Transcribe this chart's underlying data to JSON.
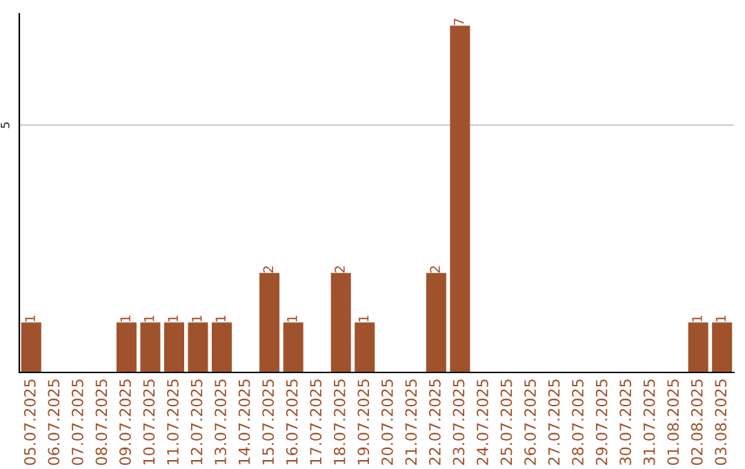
{
  "chart_data": {
    "type": "bar",
    "categories": [
      "05.07.2025",
      "06.07.2025",
      "07.07.2025",
      "08.07.2025",
      "09.07.2025",
      "10.07.2025",
      "11.07.2025",
      "12.07.2025",
      "13.07.2025",
      "14.07.2025",
      "15.07.2025",
      "16.07.2025",
      "17.07.2025",
      "18.07.2025",
      "19.07.2025",
      "20.07.2025",
      "21.07.2025",
      "22.07.2025",
      "23.07.2025",
      "24.07.2025",
      "25.07.2025",
      "26.07.2025",
      "27.07.2025",
      "28.07.2025",
      "29.07.2025",
      "30.07.2025",
      "31.07.2025",
      "01.08.2025",
      "02.08.2025",
      "03.08.2025"
    ],
    "values": [
      1,
      0,
      0,
      0,
      1,
      1,
      1,
      1,
      1,
      0,
      2,
      1,
      0,
      2,
      1,
      0,
      0,
      2,
      7,
      0,
      0,
      0,
      0,
      0,
      0,
      0,
      0,
      0,
      1,
      1
    ],
    "value_labels": [
      "1",
      null,
      null,
      null,
      "1",
      "1",
      "1",
      "1",
      "1",
      null,
      "2",
      "1",
      null,
      "2",
      "1",
      null,
      null,
      "2",
      "7",
      null,
      null,
      null,
      null,
      null,
      null,
      null,
      null,
      null,
      "1",
      "1"
    ],
    "color": "#a0522d",
    "ylim": [
      0,
      7.25
    ],
    "yticks": [
      5
    ],
    "grid": "y"
  }
}
